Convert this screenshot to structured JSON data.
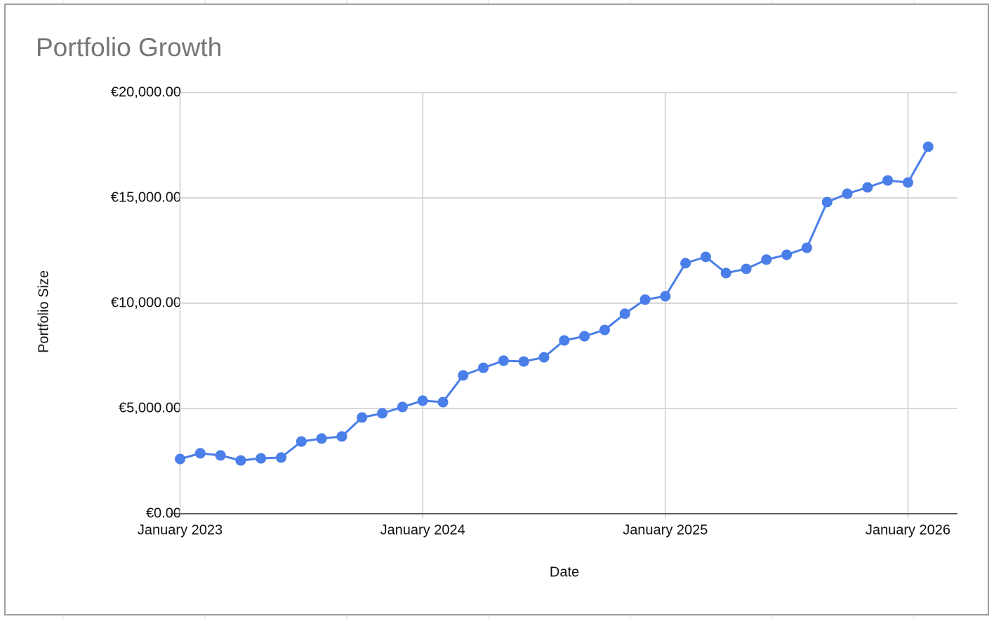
{
  "chart_data": {
    "type": "line",
    "title": "Portfolio Growth",
    "xlabel": "Date",
    "ylabel": "Portfolio Size",
    "x": [
      "2023-01",
      "2023-02",
      "2023-03",
      "2023-04",
      "2023-05",
      "2023-06",
      "2023-07",
      "2023-08",
      "2023-09",
      "2023-10",
      "2023-11",
      "2023-12",
      "2024-01",
      "2024-02",
      "2024-03",
      "2024-04",
      "2024-05",
      "2024-06",
      "2024-07",
      "2024-08",
      "2024-09",
      "2024-10",
      "2024-11",
      "2024-12",
      "2025-01",
      "2025-02",
      "2025-03",
      "2025-04",
      "2025-05",
      "2025-06",
      "2025-07",
      "2025-08",
      "2025-09",
      "2025-10",
      "2025-11",
      "2025-12",
      "2026-01",
      "2026-02"
    ],
    "values": [
      2600,
      2870,
      2770,
      2530,
      2630,
      2670,
      3430,
      3570,
      3670,
      4570,
      4770,
      5070,
      5370,
      5300,
      6570,
      6930,
      7270,
      7230,
      7430,
      8230,
      8430,
      8730,
      9500,
      10170,
      10330,
      11900,
      12200,
      11430,
      11630,
      12070,
      12300,
      12630,
      14800,
      15200,
      15500,
      15830,
      15730,
      17430
    ],
    "color": "#4a7ee8",
    "xticks": [
      {
        "value": "2023-01",
        "label": "January 2023"
      },
      {
        "value": "2024-01",
        "label": "January 2024"
      },
      {
        "value": "2025-01",
        "label": "January 2025"
      },
      {
        "value": "2026-01",
        "label": "January 2026"
      }
    ],
    "ylim": [
      0,
      20000
    ],
    "yticks": [
      {
        "value": 0,
        "label": "€0.00"
      },
      {
        "value": 5000,
        "label": "€5,000.00"
      },
      {
        "value": 10000,
        "label": "€10,000.00"
      },
      {
        "value": 15000,
        "label": "€15,000.00"
      },
      {
        "value": 20000,
        "label": "€20,000.00"
      }
    ],
    "grid": true
  }
}
